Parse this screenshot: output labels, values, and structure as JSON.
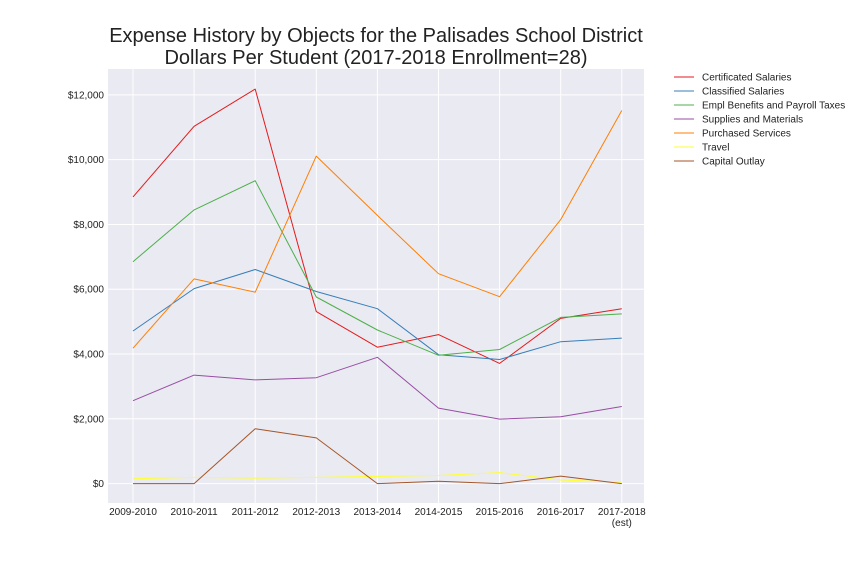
{
  "chart_data": {
    "type": "line",
    "title": "Expense History by Objects for the Palisades School District",
    "subtitle": "Dollars Per Student (2017-2018 Enrollment=28)",
    "xlabel": "",
    "ylabel": "",
    "categories": [
      "2009-2010",
      "2010-2011",
      "2011-2012",
      "2012-2013",
      "2013-2014",
      "2014-2015",
      "2015-2016",
      "2016-2017",
      "2017-2018"
    ],
    "category_notes": [
      "",
      "",
      "",
      "",
      "",
      "",
      "",
      "",
      "(est)"
    ],
    "y_ticks": [
      0,
      2000,
      4000,
      6000,
      8000,
      10000,
      12000
    ],
    "y_tick_labels": [
      "$0",
      "$2,000",
      "$4,000",
      "$6,000",
      "$8,000",
      "$10,000",
      "$12,000"
    ],
    "ylim": [
      -600,
      12800
    ],
    "grid": true,
    "legend_placement": "outside-top-right",
    "series": [
      {
        "name": "Certificated Salaries",
        "color": "#e41a1c",
        "values": [
          8850,
          11030,
          12180,
          5310,
          4210,
          4600,
          3710,
          5100,
          5400
        ]
      },
      {
        "name": "Classified Salaries",
        "color": "#377eb8",
        "values": [
          4710,
          6020,
          6610,
          5930,
          5400,
          3980,
          3830,
          4380,
          4490
        ]
      },
      {
        "name": "Empl Benefits and Payroll Taxes",
        "color": "#4daf4a",
        "values": [
          6850,
          8450,
          9350,
          5760,
          4740,
          3960,
          4140,
          5130,
          5240
        ]
      },
      {
        "name": "Supplies and Materials",
        "color": "#984ea3",
        "values": [
          2560,
          3350,
          3200,
          3270,
          3900,
          2330,
          1990,
          2060,
          2380
        ]
      },
      {
        "name": "Purchased Services",
        "color": "#ff7f00",
        "values": [
          4180,
          6320,
          5910,
          10110,
          8280,
          6480,
          5770,
          8150,
          11520
        ]
      },
      {
        "name": "Travel",
        "color": "#ffff33",
        "values": [
          150,
          190,
          170,
          190,
          220,
          250,
          340,
          110,
          40
        ]
      },
      {
        "name": "Capital Outlay",
        "color": "#a65628",
        "values": [
          0,
          0,
          1690,
          1410,
          0,
          70,
          0,
          230,
          0
        ]
      }
    ]
  }
}
